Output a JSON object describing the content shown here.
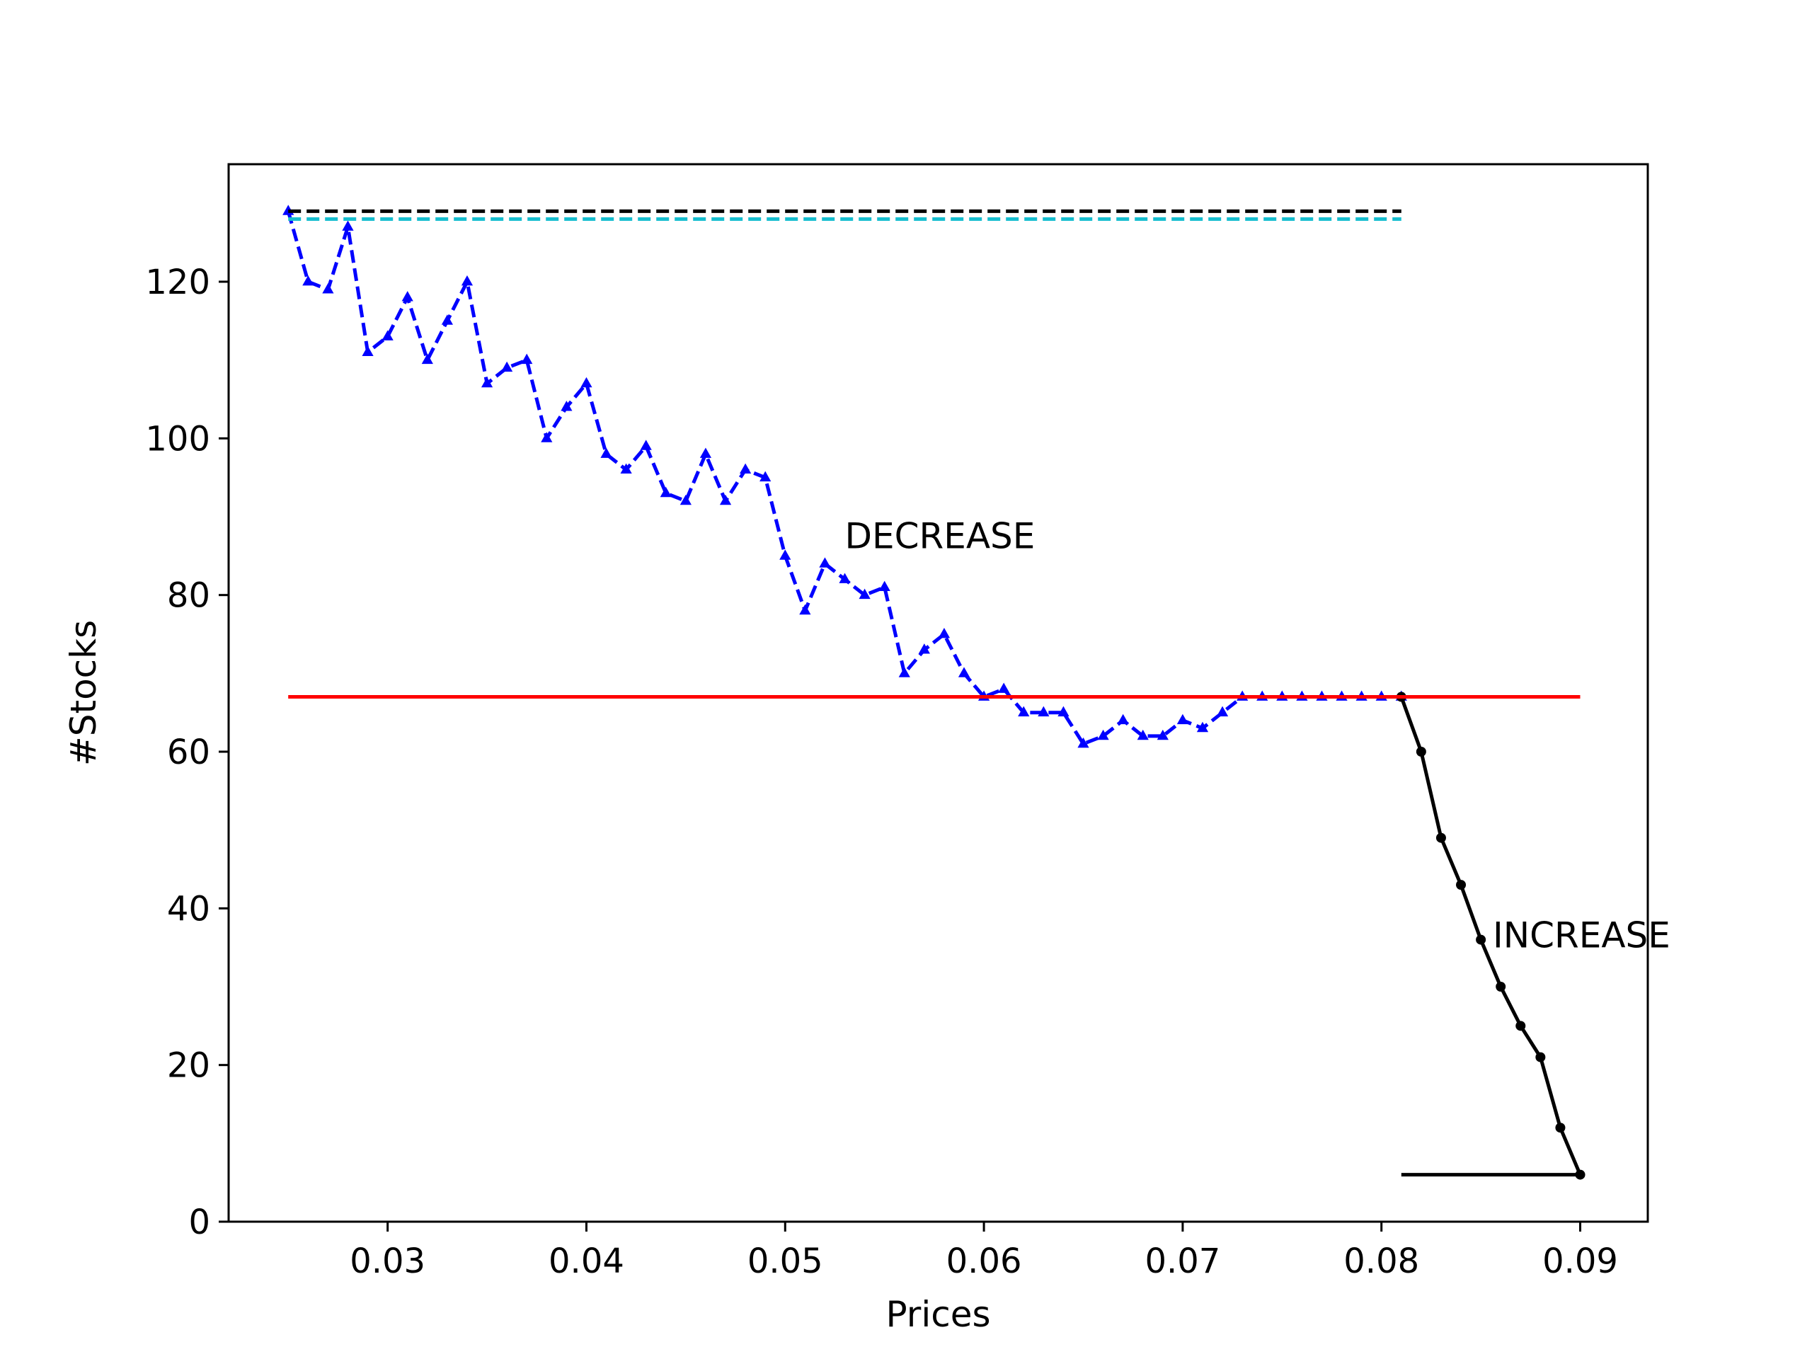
{
  "chart_data": {
    "type": "line",
    "title": "",
    "xlabel": "Prices",
    "ylabel": "#Stocks",
    "xlim": [
      0.022,
      0.0934
    ],
    "ylim": [
      0,
      135
    ],
    "grid": false,
    "x_ticks": [
      0.03,
      0.04,
      0.05,
      0.06,
      0.07,
      0.08,
      0.09
    ],
    "y_ticks": [
      0,
      20,
      40,
      60,
      80,
      100,
      120
    ],
    "x_tick_labels": [
      "0.03",
      "0.04",
      "0.05",
      "0.06",
      "0.07",
      "0.08",
      "0.09"
    ],
    "y_tick_labels": [
      "0",
      "20",
      "40",
      "60",
      "80",
      "100",
      "120"
    ],
    "series": [
      {
        "style": "blue-dashed-triangles",
        "color": "#0000ff",
        "x": [
          0.025,
          0.026,
          0.027,
          0.028,
          0.029,
          0.03,
          0.031,
          0.032,
          0.033,
          0.034,
          0.035,
          0.036,
          0.037,
          0.038,
          0.039,
          0.04,
          0.041,
          0.042,
          0.043,
          0.044,
          0.045,
          0.046,
          0.047,
          0.048,
          0.049,
          0.05,
          0.051,
          0.052,
          0.053,
          0.054,
          0.055,
          0.056,
          0.057,
          0.058,
          0.059,
          0.06,
          0.061,
          0.062,
          0.063,
          0.064,
          0.065,
          0.066,
          0.067,
          0.068,
          0.069,
          0.07,
          0.071,
          0.072,
          0.073,
          0.074,
          0.075,
          0.076,
          0.077,
          0.078,
          0.079,
          0.08,
          0.081
        ],
        "y": [
          129,
          120,
          119,
          127,
          111,
          113,
          118,
          110,
          115,
          120,
          107,
          109,
          110,
          100,
          104,
          107,
          98,
          96,
          99,
          93,
          92,
          98,
          92,
          96,
          95,
          85,
          78,
          84,
          82,
          80,
          81,
          70,
          73,
          75,
          70,
          67,
          68,
          65,
          65,
          65,
          61,
          62,
          64,
          62,
          62,
          64,
          63,
          65,
          67,
          67,
          67,
          67,
          67,
          67,
          67,
          67,
          67
        ]
      },
      {
        "style": "black-solid-dots",
        "color": "#000000",
        "x": [
          0.081,
          0.082,
          0.083,
          0.084,
          0.085,
          0.086,
          0.087,
          0.088,
          0.089,
          0.09
        ],
        "y": [
          67,
          60,
          49,
          43,
          36,
          30,
          25,
          21,
          12,
          6
        ]
      },
      {
        "style": "red-solid-hline",
        "color": "#ff0000",
        "x": [
          0.025,
          0.09
        ],
        "y": [
          67,
          67
        ]
      },
      {
        "style": "black-dashed-hline",
        "color": "#000000",
        "x": [
          0.025,
          0.081
        ],
        "y": [
          129,
          129
        ]
      },
      {
        "style": "cyan-dashed-hline",
        "color": "#17becf",
        "x": [
          0.025,
          0.081
        ],
        "y": [
          128,
          128
        ]
      },
      {
        "style": "black-solid-hline",
        "color": "#000000",
        "x": [
          0.081,
          0.09
        ],
        "y": [
          6,
          6
        ]
      }
    ],
    "annotations": [
      {
        "text": "DECREASE",
        "x": 0.053,
        "y": 86
      },
      {
        "text": "INCREASE",
        "x": 0.0856,
        "y": 35
      }
    ]
  }
}
